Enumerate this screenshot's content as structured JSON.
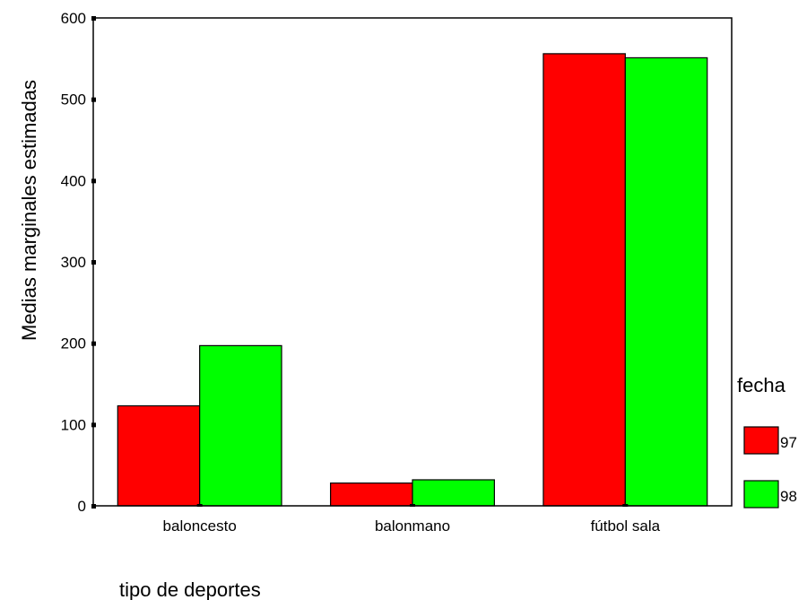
{
  "chart_data": {
    "type": "bar",
    "categories": [
      "baloncesto",
      "balonmano",
      "fútbol sala"
    ],
    "series": [
      {
        "name": "97",
        "color": "#ff0000",
        "values": [
          123,
          28,
          556
        ]
      },
      {
        "name": "98",
        "color": "#00ff00",
        "values": [
          197,
          32,
          551
        ]
      }
    ],
    "yticks": [
      0,
      100,
      200,
      300,
      400,
      500,
      600
    ],
    "ylim": [
      0,
      600
    ],
    "xlabel": "tipo de deportes",
    "ylabel": "Medias marginales estimadas",
    "legend_title": "fecha",
    "legend_position": "right",
    "grid": false
  }
}
